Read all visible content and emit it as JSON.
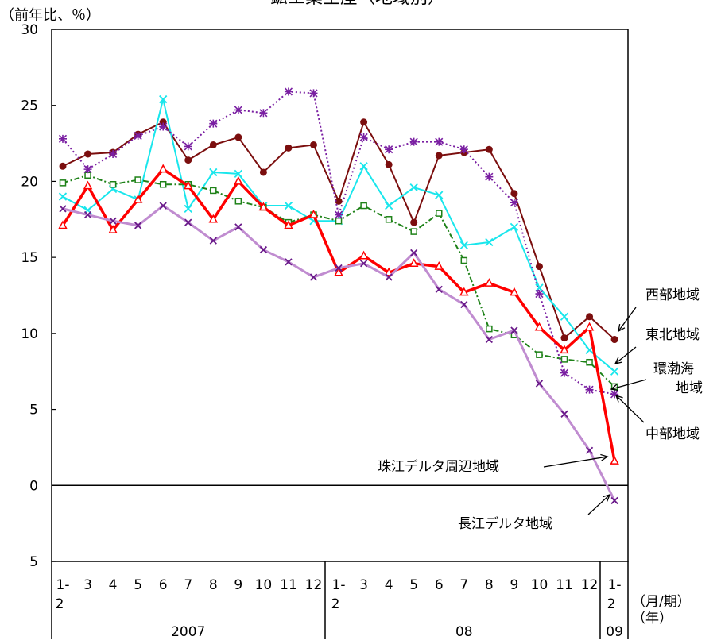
{
  "chart_data": {
    "type": "line",
    "title": "鉱工業生産（地域別）",
    "ylabel": "（前年比、％）",
    "ylim": [
      -5,
      30
    ],
    "yticks": [
      30,
      25,
      20,
      15,
      10,
      5,
      0,
      -5
    ],
    "ytick_labels": [
      "30",
      "25",
      "20",
      "15",
      "10",
      "5",
      "0",
      "5"
    ],
    "grid": false,
    "categories": [
      "1-2",
      "3",
      "4",
      "5",
      "6",
      "7",
      "8",
      "9",
      "10",
      "11",
      "12",
      "1-2",
      "3",
      "4",
      "5",
      "6",
      "7",
      "8",
      "9",
      "10",
      "11",
      "12",
      "1-2"
    ],
    "xtick_labels": [
      {
        "top": "1-",
        "bottom": "2"
      },
      {
        "top": "3"
      },
      {
        "top": "4"
      },
      {
        "top": "5"
      },
      {
        "top": "6"
      },
      {
        "top": "7"
      },
      {
        "top": "8"
      },
      {
        "top": "9"
      },
      {
        "top": "10"
      },
      {
        "top": "11"
      },
      {
        "top": "12"
      },
      {
        "top": "1-",
        "bottom": "2"
      },
      {
        "top": "3"
      },
      {
        "top": "4"
      },
      {
        "top": "5"
      },
      {
        "top": "6"
      },
      {
        "top": "7"
      },
      {
        "top": "8"
      },
      {
        "top": "9"
      },
      {
        "top": "10"
      },
      {
        "top": "11"
      },
      {
        "top": "12"
      },
      {
        "top": "1-",
        "bottom": "2"
      }
    ],
    "xlabel_period": "（月/期）",
    "xlabel_year": "（年）",
    "years": [
      {
        "label": "2007",
        "start": 0,
        "end": 10
      },
      {
        "label": "08",
        "start": 11,
        "end": 21
      },
      {
        "label": "09",
        "start": 22,
        "end": 22
      }
    ],
    "series": [
      {
        "name": "西部地域",
        "color": "#7b0e0e",
        "marker": "dot",
        "dash": "",
        "values": [
          21.0,
          21.8,
          21.9,
          23.1,
          23.9,
          21.4,
          22.4,
          22.9,
          20.6,
          22.2,
          22.4,
          18.7,
          23.9,
          21.1,
          17.3,
          21.7,
          21.9,
          22.1,
          19.2,
          14.4,
          9.7,
          11.1,
          9.6
        ]
      },
      {
        "name": "東北地域",
        "color": "#19e6ec",
        "marker": "x",
        "dash": "",
        "values": [
          19.0,
          18.1,
          19.5,
          18.8,
          25.4,
          18.2,
          20.6,
          20.5,
          18.4,
          18.4,
          17.4,
          17.4,
          21.0,
          18.4,
          19.6,
          19.1,
          15.8,
          16.0,
          17.0,
          13.0,
          11.1,
          8.9,
          7.5
        ]
      },
      {
        "name": "環渤海地域",
        "color": "#1e8218",
        "marker": "square",
        "dash": "7 3 2 3",
        "values": [
          19.9,
          20.4,
          19.8,
          20.1,
          19.8,
          19.8,
          19.4,
          18.7,
          18.3,
          17.3,
          17.8,
          17.4,
          18.4,
          17.5,
          16.7,
          17.9,
          14.8,
          10.3,
          9.9,
          8.6,
          8.3,
          8.1,
          6.5
        ]
      },
      {
        "name": "中部地域",
        "color": "#7a1fa2",
        "marker": "asterisk",
        "dash": "2 3",
        "values": [
          22.8,
          20.8,
          21.8,
          23.0,
          23.6,
          22.3,
          23.8,
          24.7,
          24.5,
          25.9,
          25.8,
          17.8,
          22.9,
          22.1,
          22.6,
          22.6,
          22.1,
          20.3,
          18.6,
          12.6,
          7.4,
          6.3,
          6.0
        ]
      },
      {
        "name": "珠江デルタ周辺地域",
        "color": "#ff0000",
        "marker": "triangle",
        "dash": "",
        "values": [
          17.1,
          19.7,
          16.8,
          18.8,
          20.8,
          19.7,
          17.5,
          20.0,
          18.3,
          17.1,
          17.8,
          14.0,
          15.1,
          14.0,
          14.6,
          14.4,
          12.7,
          13.3,
          12.7,
          10.4,
          8.9,
          10.4,
          1.6
        ]
      },
      {
        "name": "長江デルタ地域",
        "color": "#c08cd0",
        "marker": "x-purple",
        "dash": "",
        "values": [
          18.2,
          17.8,
          17.4,
          17.1,
          18.4,
          17.3,
          16.1,
          17.0,
          15.5,
          14.7,
          13.7,
          14.3,
          14.6,
          13.7,
          15.3,
          12.9,
          11.9,
          9.6,
          10.2,
          6.7,
          4.7,
          2.3,
          -1.0
        ]
      }
    ],
    "annotations": [
      {
        "label": "西部地域",
        "lines": [
          "西部地域"
        ]
      },
      {
        "label": "東北地域",
        "lines": [
          "東北地域"
        ]
      },
      {
        "label": "環渤海地域",
        "lines": [
          "環渤海",
          "地域"
        ]
      },
      {
        "label": "中部地域",
        "lines": [
          "中部地域"
        ]
      },
      {
        "label": "珠江デルタ周辺地域",
        "lines": [
          "珠江デルタ周辺地域"
        ]
      },
      {
        "label": "長江デルタ地域",
        "lines": [
          "長江デルタ地域"
        ]
      }
    ]
  }
}
